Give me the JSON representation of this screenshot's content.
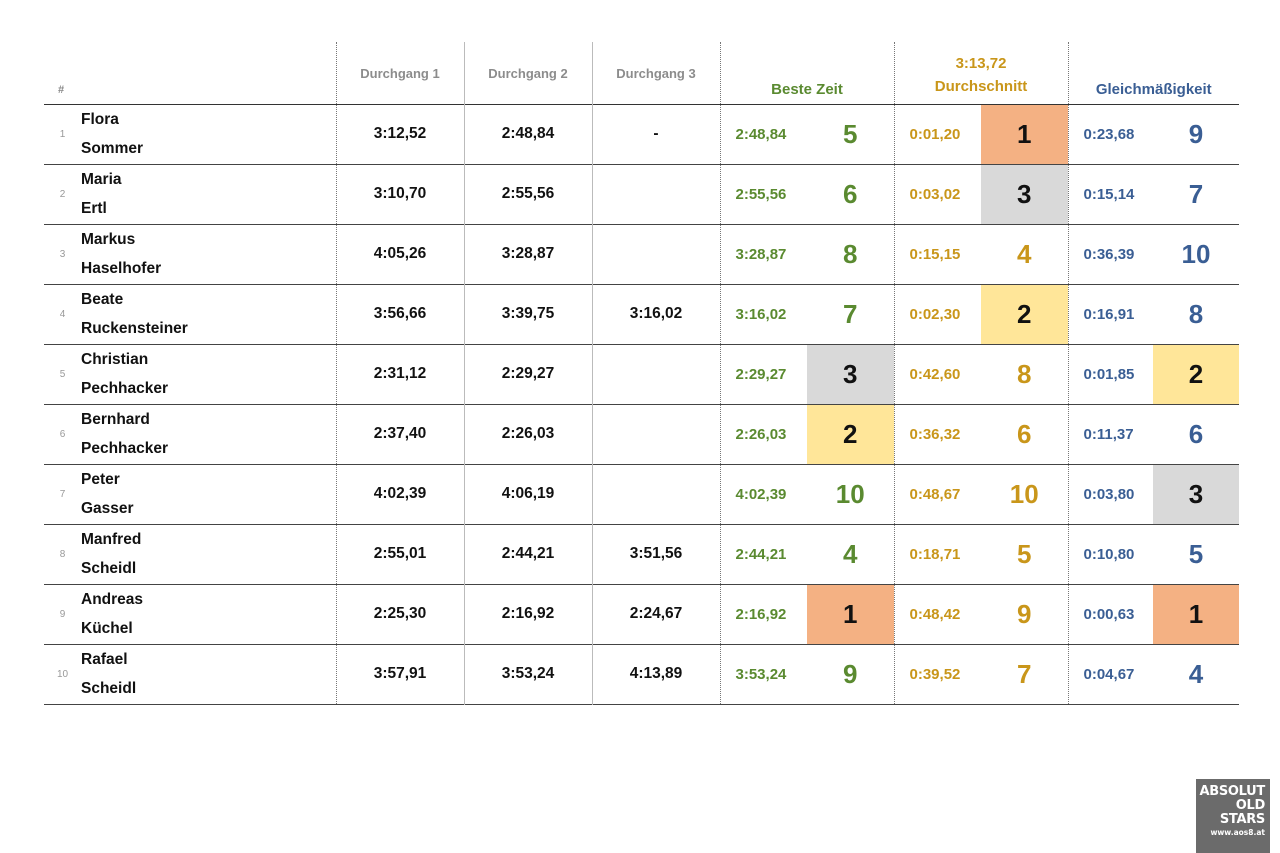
{
  "header": {
    "hash": "#",
    "run1": "Durchgang 1",
    "run2": "Durchgang 2",
    "run3": "Durchgang 3",
    "best": "Beste Zeit",
    "avg_value": "3:13,72",
    "avg": "Durchschnitt",
    "consistency": "Gleichmäßigkeit"
  },
  "rank_colors": {
    "1": "#f4b183",
    "2": "#ffe699",
    "3": "#d9d9d9"
  },
  "rows": [
    {
      "idx": "1",
      "first": "Flora",
      "last": "Sommer",
      "d1": "3:12,52",
      "d2": "2:48,84",
      "d3": "-",
      "best": "2:48,84",
      "best_rank": "5",
      "avg": "0:01,20",
      "avg_rank": "1",
      "gl": "0:23,68",
      "gl_rank": "9"
    },
    {
      "idx": "2",
      "first": "Maria",
      "last": "Ertl",
      "d1": "3:10,70",
      "d2": "2:55,56",
      "d3": "",
      "best": "2:55,56",
      "best_rank": "6",
      "avg": "0:03,02",
      "avg_rank": "3",
      "gl": "0:15,14",
      "gl_rank": "7"
    },
    {
      "idx": "3",
      "first": "Markus",
      "last": "Haselhofer",
      "d1": "4:05,26",
      "d2": "3:28,87",
      "d3": "",
      "best": "3:28,87",
      "best_rank": "8",
      "avg": "0:15,15",
      "avg_rank": "4",
      "gl": "0:36,39",
      "gl_rank": "10"
    },
    {
      "idx": "4",
      "first": "Beate",
      "last": "Ruckensteiner",
      "d1": "3:56,66",
      "d2": "3:39,75",
      "d3": "3:16,02",
      "best": "3:16,02",
      "best_rank": "7",
      "avg": "0:02,30",
      "avg_rank": "2",
      "gl": "0:16,91",
      "gl_rank": "8"
    },
    {
      "idx": "5",
      "first": "Christian",
      "last": "Pechhacker",
      "d1": "2:31,12",
      "d2": "2:29,27",
      "d3": "",
      "best": "2:29,27",
      "best_rank": "3",
      "avg": "0:42,60",
      "avg_rank": "8",
      "gl": "0:01,85",
      "gl_rank": "2"
    },
    {
      "idx": "6",
      "first": "Bernhard",
      "last": "Pechhacker",
      "d1": "2:37,40",
      "d2": "2:26,03",
      "d3": "",
      "best": "2:26,03",
      "best_rank": "2",
      "avg": "0:36,32",
      "avg_rank": "6",
      "gl": "0:11,37",
      "gl_rank": "6"
    },
    {
      "idx": "7",
      "first": "Peter",
      "last": "Gasser",
      "d1": "4:02,39",
      "d2": "4:06,19",
      "d3": "",
      "best": "4:02,39",
      "best_rank": "10",
      "avg": "0:48,67",
      "avg_rank": "10",
      "gl": "0:03,80",
      "gl_rank": "3"
    },
    {
      "idx": "8",
      "first": "Manfred",
      "last": "Scheidl",
      "d1": "2:55,01",
      "d2": "2:44,21",
      "d3": "3:51,56",
      "best": "2:44,21",
      "best_rank": "4",
      "avg": "0:18,71",
      "avg_rank": "5",
      "gl": "0:10,80",
      "gl_rank": "5"
    },
    {
      "idx": "9",
      "first": "Andreas",
      "last": "Küchel",
      "d1": "2:25,30",
      "d2": "2:16,92",
      "d3": "2:24,67",
      "best": "2:16,92",
      "best_rank": "1",
      "avg": "0:48,42",
      "avg_rank": "9",
      "gl": "0:00,63",
      "gl_rank": "1"
    },
    {
      "idx": "10",
      "first": "Rafael",
      "last": "Scheidl",
      "d1": "3:57,91",
      "d2": "3:53,24",
      "d3": "4:13,89",
      "best": "3:53,24",
      "best_rank": "9",
      "avg": "0:39,52",
      "avg_rank": "7",
      "gl": "0:04,67",
      "gl_rank": "4"
    }
  ],
  "logo": {
    "line1": "ABSOLUT",
    "line2": "OLD",
    "line3": "STARS",
    "url": "www.aos8.at"
  }
}
